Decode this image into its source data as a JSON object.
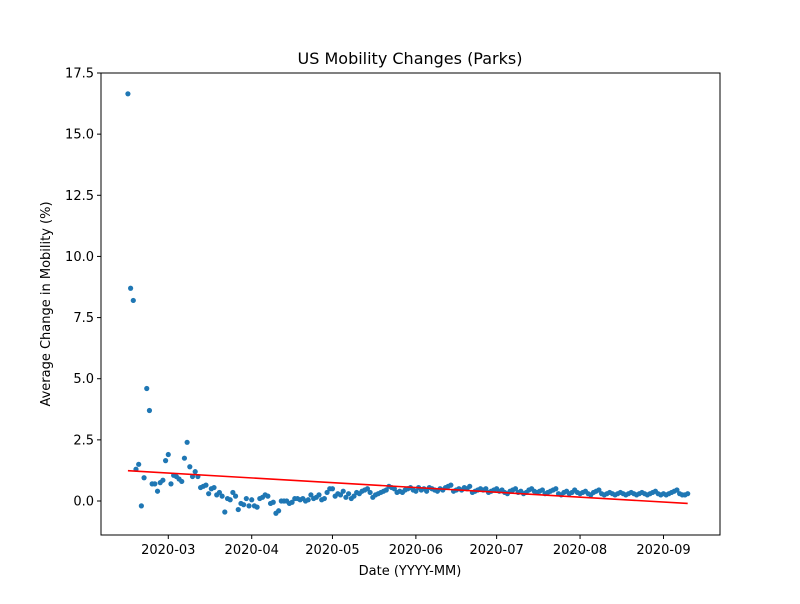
{
  "chart_data": {
    "type": "scatter",
    "title": "US Mobility Changes (Parks)",
    "x_label": "Date (YYYY-MM)",
    "y_label": "Average Change in Mobility (%)",
    "color": "#1f77b4",
    "values": [
      16.65,
      8.7,
      8.2,
      1.3,
      1.5,
      -0.2,
      0.95,
      4.6,
      3.7,
      0.7,
      0.7,
      0.4,
      0.75,
      0.85,
      1.65,
      1.9,
      0.7,
      1.05,
      1.0,
      0.9,
      0.8,
      1.75,
      2.4,
      1.4,
      1.0,
      1.2,
      1.0,
      0.55,
      0.6,
      0.65,
      0.3,
      0.5,
      0.55,
      0.25,
      0.35,
      0.2,
      -0.45,
      0.1,
      0.05,
      0.35,
      0.2,
      -0.35,
      -0.1,
      -0.15,
      0.1,
      -0.2,
      0.05,
      -0.2,
      -0.25,
      0.1,
      0.15,
      0.25,
      0.2,
      -0.1,
      -0.05,
      -0.5,
      -0.4,
      0.0,
      0.0,
      0.0,
      -0.1,
      -0.05,
      0.1,
      0.1,
      0.05,
      0.1,
      0.0,
      0.05,
      0.25,
      0.1,
      0.15,
      0.25,
      0.05,
      0.1,
      0.35,
      0.5,
      0.5,
      0.2,
      0.3,
      0.25,
      0.4,
      0.15,
      0.3,
      0.1,
      0.2,
      0.35,
      0.3,
      0.4,
      0.45,
      0.5,
      0.35,
      0.15,
      0.25,
      0.3,
      0.35,
      0.4,
      0.45,
      0.6,
      0.55,
      0.5,
      0.35,
      0.4,
      0.35,
      0.45,
      0.5,
      0.55,
      0.45,
      0.4,
      0.55,
      0.45,
      0.5,
      0.4,
      0.55,
      0.5,
      0.45,
      0.4,
      0.5,
      0.45,
      0.55,
      0.6,
      0.65,
      0.4,
      0.45,
      0.5,
      0.45,
      0.55,
      0.5,
      0.6,
      0.35,
      0.4,
      0.45,
      0.5,
      0.45,
      0.5,
      0.35,
      0.4,
      0.45,
      0.5,
      0.4,
      0.45,
      0.35,
      0.3,
      0.4,
      0.45,
      0.5,
      0.35,
      0.4,
      0.3,
      0.35,
      0.45,
      0.5,
      0.4,
      0.35,
      0.4,
      0.45,
      0.3,
      0.35,
      0.4,
      0.45,
      0.5,
      0.3,
      0.25,
      0.35,
      0.4,
      0.3,
      0.35,
      0.45,
      0.35,
      0.3,
      0.35,
      0.4,
      0.3,
      0.25,
      0.35,
      0.4,
      0.45,
      0.3,
      0.25,
      0.3,
      0.35,
      0.3,
      0.25,
      0.3,
      0.35,
      0.3,
      0.25,
      0.3,
      0.35,
      0.3,
      0.25,
      0.3,
      0.35,
      0.3,
      0.25,
      0.3,
      0.35,
      0.4,
      0.3,
      0.25,
      0.3,
      0.25,
      0.3,
      0.35,
      0.4,
      0.45,
      0.3,
      0.25,
      0.25,
      0.3
    ],
    "trend_line": {
      "x": [
        0,
        208
      ],
      "values": [
        1.24,
        -0.1
      ],
      "color": "red"
    },
    "xlim": [
      -10,
      220
    ],
    "xticks": [
      {
        "value": 15,
        "label": "2020-03"
      },
      {
        "value": 46,
        "label": "2020-04"
      },
      {
        "value": 76,
        "label": "2020-05"
      },
      {
        "value": 107,
        "label": "2020-06"
      },
      {
        "value": 137,
        "label": "2020-07"
      },
      {
        "value": 168,
        "label": "2020-08"
      },
      {
        "value": 199,
        "label": "2020-09"
      }
    ],
    "ylim": [
      -1.39,
      17.5
    ],
    "yticks": [
      {
        "value": 0,
        "label": "0.0"
      },
      2.5,
      {
        "value": 5,
        "label": "5.0"
      },
      7.5,
      {
        "value": 10,
        "label": "10.0"
      },
      12.5,
      {
        "value": 15,
        "label": "15.0"
      },
      17.5
    ]
  }
}
